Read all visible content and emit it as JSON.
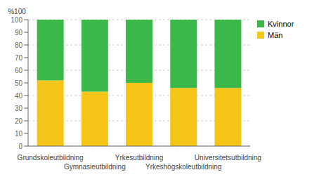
{
  "chart_data": {
    "type": "bar",
    "stacked": true,
    "ylabel": "%100",
    "categories": [
      "Grundskoleutbildning",
      "Gymnasieutbildning",
      "Yrkesutbildning",
      "Yrkeshögskoleutbildning",
      "Universitetsutbildning"
    ],
    "series": [
      {
        "name": "Män",
        "color": "#F5C518",
        "values": [
          52,
          43,
          50,
          46,
          46
        ]
      },
      {
        "name": "Kvinnor",
        "color": "#3CB84A",
        "values": [
          48,
          57,
          50,
          54,
          54
        ]
      }
    ],
    "ylim": [
      0,
      100
    ],
    "yticks": [
      0,
      10,
      20,
      30,
      40,
      50,
      60,
      70,
      80,
      90,
      100
    ],
    "grid": true,
    "legend": "right"
  }
}
